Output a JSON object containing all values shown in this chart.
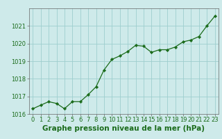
{
  "x": [
    0,
    1,
    2,
    3,
    4,
    5,
    6,
    7,
    8,
    9,
    10,
    11,
    12,
    13,
    14,
    15,
    16,
    17,
    18,
    19,
    20,
    21,
    22,
    23
  ],
  "y": [
    1016.3,
    1016.5,
    1016.7,
    1016.6,
    1016.3,
    1016.7,
    1016.7,
    1017.1,
    1017.55,
    1018.5,
    1019.1,
    1019.3,
    1019.55,
    1019.9,
    1019.85,
    1019.5,
    1019.65,
    1019.65,
    1019.8,
    1020.1,
    1020.2,
    1020.4,
    1021.0,
    1021.55
  ],
  "line_color": "#1a6b1a",
  "marker": "D",
  "marker_size": 2.2,
  "bg_color": "#ceeaea",
  "grid_color": "#9ecece",
  "title": "Graphe pression niveau de la mer (hPa)",
  "xlim": [
    -0.5,
    23.5
  ],
  "ylim": [
    1016.0,
    1022.0
  ],
  "yticks": [
    1016,
    1017,
    1018,
    1019,
    1020,
    1021
  ],
  "xticks": [
    0,
    1,
    2,
    3,
    4,
    5,
    6,
    7,
    8,
    9,
    10,
    11,
    12,
    13,
    14,
    15,
    16,
    17,
    18,
    19,
    20,
    21,
    22,
    23
  ],
  "title_fontsize": 7.5,
  "tick_fontsize": 6.0
}
